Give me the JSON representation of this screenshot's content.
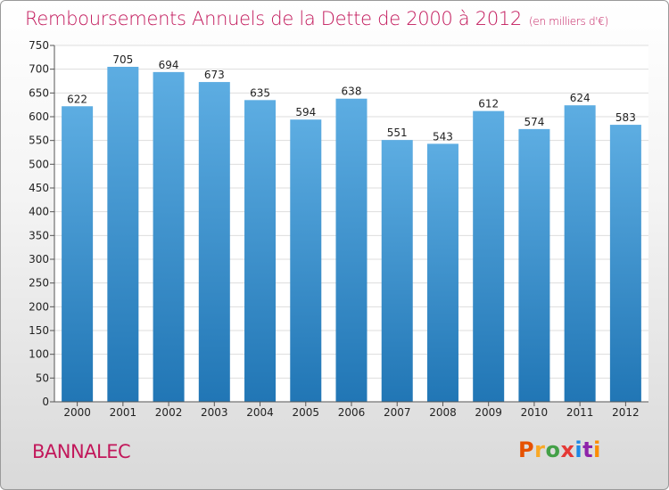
{
  "title": "Remboursements Annuels de la Dette de 2000 à 2012",
  "subtitle": "(en milliers d'€)",
  "commune": "BANNALEC",
  "logo": {
    "letters": [
      "P",
      "r",
      "o",
      "x",
      "i",
      "t",
      "i"
    ],
    "colors": [
      "#e65100",
      "#f9a825",
      "#43a047",
      "#e53935",
      "#1e88e5",
      "#8e24aa",
      "#fb8c00"
    ]
  },
  "chart_data": {
    "type": "bar",
    "categories": [
      "2000",
      "2001",
      "2002",
      "2003",
      "2004",
      "2005",
      "2006",
      "2007",
      "2008",
      "2009",
      "2010",
      "2011",
      "2012"
    ],
    "values": [
      622,
      705,
      694,
      673,
      635,
      594,
      638,
      551,
      543,
      612,
      574,
      624,
      583
    ],
    "ylim": [
      0,
      750
    ],
    "yticks": [
      0,
      50,
      100,
      150,
      200,
      250,
      300,
      350,
      400,
      450,
      500,
      550,
      600,
      650,
      700,
      750
    ],
    "grid": true,
    "bar_color_top": "#5dade2",
    "bar_color_bottom": "#2176b5"
  }
}
